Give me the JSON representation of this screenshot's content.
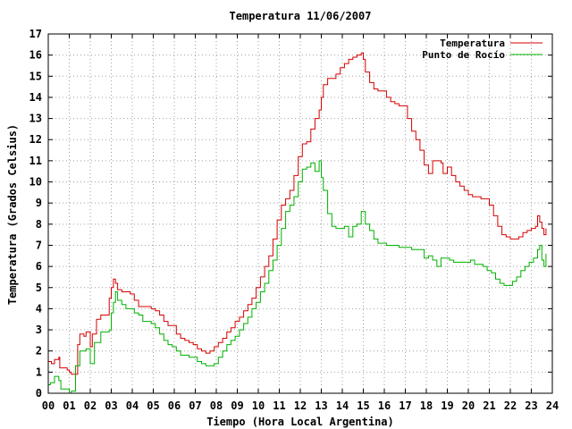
{
  "chart_data": {
    "type": "line",
    "title": "Temperatura 11/06/2007",
    "xlabel": "Tiempo (Hora Local Argentina)",
    "ylabel": "Temperatura (Grados Celsius)",
    "xlim": [
      0,
      24
    ],
    "ylim": [
      0,
      17
    ],
    "x_ticks": [
      "00",
      "01",
      "02",
      "03",
      "04",
      "05",
      "06",
      "07",
      "08",
      "09",
      "10",
      "11",
      "12",
      "13",
      "14",
      "15",
      "16",
      "17",
      "18",
      "19",
      "20",
      "21",
      "22",
      "23",
      "24"
    ],
    "y_ticks": [
      "0",
      "1",
      "2",
      "3",
      "4",
      "5",
      "6",
      "7",
      "8",
      "9",
      "10",
      "11",
      "12",
      "13",
      "14",
      "15",
      "16",
      "17"
    ],
    "grid": true,
    "legend_position": "top-right",
    "series": [
      {
        "name": "Temperatura",
        "color": "#d40000",
        "x": [
          0.0,
          0.15,
          0.3,
          0.5,
          0.55,
          0.9,
          1.0,
          1.1,
          1.4,
          1.5,
          1.6,
          1.7,
          1.8,
          2.0,
          2.1,
          2.3,
          2.5,
          2.7,
          2.9,
          3.0,
          3.1,
          3.2,
          3.3,
          3.5,
          3.7,
          3.9,
          4.1,
          4.3,
          4.5,
          4.7,
          4.9,
          5.1,
          5.3,
          5.5,
          5.7,
          5.9,
          6.1,
          6.3,
          6.5,
          6.7,
          6.9,
          7.1,
          7.3,
          7.5,
          7.7,
          7.9,
          8.1,
          8.3,
          8.5,
          8.7,
          8.9,
          9.1,
          9.3,
          9.5,
          9.7,
          9.9,
          10.1,
          10.3,
          10.5,
          10.7,
          10.9,
          11.1,
          11.3,
          11.5,
          11.7,
          11.9,
          12.1,
          12.3,
          12.5,
          12.7,
          12.9,
          13.0,
          13.1,
          13.3,
          13.5,
          13.7,
          13.9,
          14.1,
          14.3,
          14.5,
          14.7,
          14.9,
          15.0,
          15.1,
          15.3,
          15.5,
          15.7,
          15.9,
          16.1,
          16.3,
          16.5,
          16.7,
          16.9,
          17.1,
          17.3,
          17.5,
          17.7,
          17.9,
          18.1,
          18.3,
          18.5,
          18.7,
          18.8,
          19.0,
          19.2,
          19.4,
          19.6,
          19.8,
          20.0,
          20.2,
          20.4,
          20.6,
          20.8,
          21.0,
          21.2,
          21.4,
          21.6,
          21.8,
          22.0,
          22.2,
          22.4,
          22.6,
          22.8,
          23.0,
          23.2,
          23.3,
          23.4,
          23.5,
          23.6,
          23.7
        ],
        "y": [
          1.5,
          1.4,
          1.6,
          1.7,
          1.2,
          1.1,
          1.0,
          0.9,
          2.3,
          2.8,
          2.8,
          2.7,
          2.9,
          2.2,
          2.8,
          3.5,
          3.7,
          3.7,
          4.5,
          5.0,
          5.4,
          5.2,
          4.9,
          4.8,
          4.8,
          4.7,
          4.4,
          4.1,
          4.1,
          4.1,
          4.0,
          3.9,
          3.7,
          3.4,
          3.2,
          3.2,
          2.8,
          2.6,
          2.5,
          2.4,
          2.3,
          2.1,
          2.0,
          1.9,
          2.0,
          2.2,
          2.4,
          2.6,
          2.9,
          3.1,
          3.4,
          3.6,
          3.9,
          4.2,
          4.5,
          5.0,
          5.5,
          6.0,
          6.5,
          7.3,
          8.2,
          8.9,
          9.2,
          9.6,
          10.3,
          11.2,
          11.8,
          11.9,
          12.5,
          13.0,
          13.4,
          14.0,
          14.6,
          14.9,
          14.9,
          15.1,
          15.4,
          15.6,
          15.8,
          15.9,
          16.0,
          16.1,
          15.8,
          15.2,
          14.7,
          14.4,
          14.3,
          14.3,
          14.0,
          13.8,
          13.7,
          13.6,
          13.6,
          13.0,
          12.4,
          12.0,
          11.5,
          10.8,
          10.4,
          11.0,
          11.0,
          10.9,
          10.4,
          10.7,
          10.3,
          10.0,
          9.8,
          9.6,
          9.4,
          9.3,
          9.3,
          9.2,
          9.2,
          8.9,
          8.4,
          7.9,
          7.5,
          7.4,
          7.3,
          7.3,
          7.4,
          7.6,
          7.7,
          7.8,
          7.9,
          8.4,
          8.1,
          7.8,
          7.5,
          7.8
        ]
      },
      {
        "name": "Punto de Rocío",
        "color": "#00b000",
        "x": [
          0.0,
          0.1,
          0.3,
          0.5,
          0.6,
          0.9,
          1.0,
          1.1,
          1.3,
          1.5,
          1.6,
          1.7,
          1.8,
          2.0,
          2.2,
          2.5,
          2.7,
          2.9,
          3.0,
          3.1,
          3.2,
          3.3,
          3.5,
          3.7,
          3.9,
          4.1,
          4.3,
          4.5,
          4.7,
          4.9,
          5.1,
          5.3,
          5.5,
          5.7,
          5.9,
          6.1,
          6.3,
          6.5,
          6.7,
          6.9,
          7.1,
          7.3,
          7.5,
          7.7,
          7.9,
          8.1,
          8.3,
          8.5,
          8.7,
          8.9,
          9.1,
          9.3,
          9.5,
          9.7,
          9.9,
          10.1,
          10.3,
          10.5,
          10.7,
          10.9,
          11.1,
          11.3,
          11.5,
          11.7,
          11.9,
          12.1,
          12.3,
          12.5,
          12.7,
          12.9,
          13.0,
          13.1,
          13.3,
          13.5,
          13.7,
          13.9,
          14.1,
          14.3,
          14.5,
          14.7,
          14.9,
          15.1,
          15.3,
          15.5,
          15.7,
          15.9,
          16.1,
          16.3,
          16.5,
          16.7,
          16.9,
          17.1,
          17.3,
          17.5,
          17.7,
          17.9,
          18.1,
          18.3,
          18.5,
          18.7,
          18.9,
          19.1,
          19.3,
          19.5,
          19.7,
          19.9,
          20.1,
          20.3,
          20.5,
          20.7,
          20.9,
          21.1,
          21.3,
          21.5,
          21.7,
          21.9,
          22.1,
          22.3,
          22.5,
          22.7,
          22.9,
          23.1,
          23.3,
          23.4,
          23.5,
          23.6,
          23.7
        ],
        "y": [
          0.4,
          0.5,
          0.8,
          0.6,
          0.2,
          0.2,
          0.0,
          0.1,
          1.3,
          2.0,
          2.0,
          2.0,
          2.1,
          1.4,
          2.4,
          2.9,
          2.9,
          3.0,
          3.8,
          4.3,
          4.8,
          4.4,
          4.2,
          4.0,
          4.0,
          3.8,
          3.7,
          3.4,
          3.4,
          3.3,
          3.1,
          2.8,
          2.5,
          2.3,
          2.2,
          2.0,
          1.8,
          1.8,
          1.7,
          1.7,
          1.5,
          1.4,
          1.3,
          1.3,
          1.4,
          1.7,
          2.0,
          2.3,
          2.5,
          2.7,
          3.0,
          3.3,
          3.6,
          4.0,
          4.3,
          4.8,
          5.2,
          5.8,
          6.3,
          7.0,
          7.8,
          8.6,
          8.9,
          9.3,
          10.0,
          10.6,
          10.7,
          10.9,
          10.5,
          11.0,
          10.2,
          9.6,
          8.5,
          7.9,
          7.8,
          7.8,
          7.9,
          7.4,
          7.9,
          8.0,
          8.6,
          8.0,
          7.7,
          7.3,
          7.1,
          7.1,
          7.0,
          7.0,
          7.0,
          6.9,
          6.9,
          6.9,
          6.8,
          6.8,
          6.8,
          6.4,
          6.5,
          6.3,
          6.0,
          6.4,
          6.4,
          6.3,
          6.2,
          6.2,
          6.2,
          6.2,
          6.3,
          6.1,
          6.1,
          6.0,
          5.8,
          5.7,
          5.4,
          5.2,
          5.1,
          5.1,
          5.3,
          5.5,
          5.8,
          6.0,
          6.2,
          6.4,
          6.8,
          7.0,
          6.3,
          6.0,
          6.6
        ]
      }
    ]
  }
}
